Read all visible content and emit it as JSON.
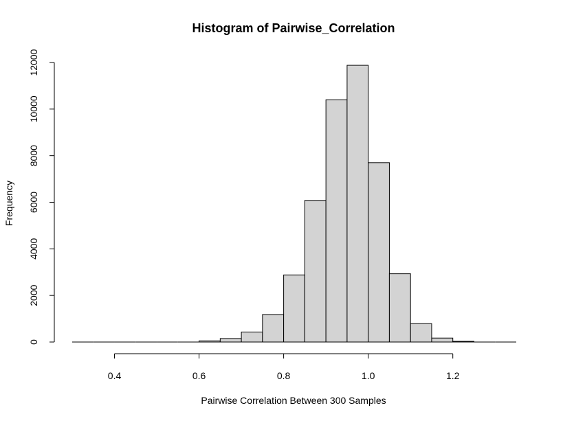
{
  "chart_data": {
    "type": "bar",
    "title": "Histogram of Pairwise_Correlation",
    "xlabel": "Pairwise Correlation Between 300 Samples",
    "ylabel": "Frequency",
    "bar_color": "#d3d3d3",
    "border_color": "#000000",
    "bin_width": 0.05,
    "bin_starts": [
      0.3,
      0.35,
      0.4,
      0.45,
      0.5,
      0.55,
      0.6,
      0.65,
      0.7,
      0.75,
      0.8,
      0.85,
      0.9,
      0.95,
      1.0,
      1.05,
      1.1,
      1.15,
      1.2,
      1.25,
      1.3
    ],
    "values": [
      0,
      0,
      0,
      0,
      0,
      0,
      50,
      150,
      430,
      1180,
      2880,
      6080,
      10400,
      11880,
      7700,
      2930,
      790,
      170,
      30,
      0,
      0
    ],
    "xlim": [
      0.3,
      1.35
    ],
    "ylim": [
      0,
      12000
    ],
    "x_ticks": [
      0.4,
      0.6,
      0.8,
      1.0,
      1.2
    ],
    "x_tick_labels": [
      "0.4",
      "0.6",
      "0.8",
      "1.0",
      "1.2"
    ],
    "y_ticks": [
      0,
      2000,
      4000,
      6000,
      8000,
      10000,
      12000
    ],
    "y_tick_labels": [
      "0",
      "2000",
      "4000",
      "6000",
      "8000",
      "10000",
      "12000"
    ],
    "grid": false
  }
}
